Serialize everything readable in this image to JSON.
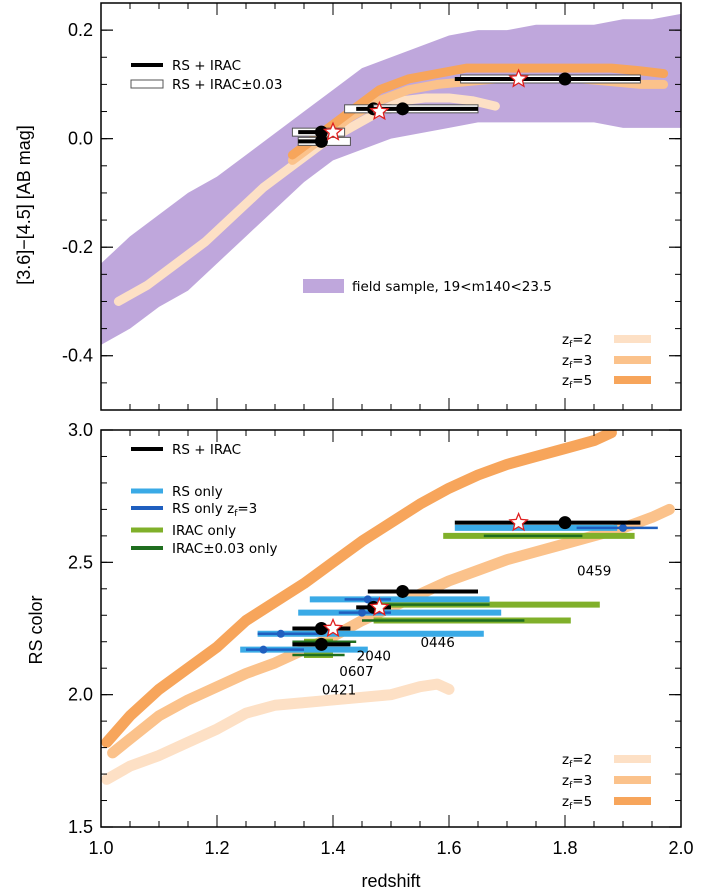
{
  "chart_data": [
    {
      "type": "line",
      "ylabel": "[3.6]−[4.5] [AB mag]",
      "xlim": [
        1.0,
        2.0
      ],
      "ylim": [
        -0.5,
        0.25
      ],
      "yticks": [
        -0.4,
        -0.2,
        0.0,
        0.2
      ],
      "ytick_labels": [
        "-0.4",
        "-0.2",
        "0.0",
        "0.2"
      ],
      "band": {
        "name": "field sample, 19<m140<23.5",
        "color": "#bfa7dc",
        "x": [
          1.0,
          1.05,
          1.1,
          1.15,
          1.2,
          1.25,
          1.3,
          1.35,
          1.4,
          1.45,
          1.5,
          1.55,
          1.6,
          1.65,
          1.7,
          1.75,
          1.8,
          1.85,
          1.9,
          1.95,
          2.0
        ],
        "upper": [
          -0.23,
          -0.18,
          -0.14,
          -0.1,
          -0.07,
          -0.03,
          0.01,
          0.05,
          0.09,
          0.13,
          0.15,
          0.17,
          0.19,
          0.2,
          0.2,
          0.21,
          0.21,
          0.21,
          0.22,
          0.22,
          0.23
        ],
        "lower": [
          -0.38,
          -0.35,
          -0.31,
          -0.28,
          -0.23,
          -0.18,
          -0.13,
          -0.08,
          -0.04,
          -0.02,
          0.0,
          0.01,
          0.02,
          0.03,
          0.03,
          0.03,
          0.03,
          0.03,
          0.02,
          0.02,
          0.02
        ]
      },
      "series": [
        {
          "name": "z_f=2",
          "color": "#fde0c5",
          "x": [
            1.03,
            1.08,
            1.13,
            1.18,
            1.23,
            1.28,
            1.33,
            1.38,
            1.43,
            1.48,
            1.52,
            1.56,
            1.6,
            1.64,
            1.68
          ],
          "values": [
            -0.3,
            -0.27,
            -0.23,
            -0.19,
            -0.14,
            -0.09,
            -0.05,
            -0.01,
            0.02,
            0.05,
            0.07,
            0.075,
            0.075,
            0.07,
            0.06
          ]
        },
        {
          "name": "z_f=3",
          "color": "#fbc28b",
          "x": [
            1.33,
            1.38,
            1.43,
            1.48,
            1.53,
            1.58,
            1.63,
            1.68,
            1.73,
            1.78,
            1.83,
            1.88,
            1.93,
            1.97
          ],
          "values": [
            -0.04,
            0.0,
            0.04,
            0.07,
            0.09,
            0.1,
            0.105,
            0.11,
            0.11,
            0.11,
            0.11,
            0.105,
            0.1,
            0.1
          ]
        },
        {
          "name": "z_f=5",
          "color": "#f7a55b",
          "x": [
            1.33,
            1.38,
            1.43,
            1.48,
            1.53,
            1.58,
            1.63,
            1.68,
            1.73,
            1.78,
            1.83,
            1.88,
            1.93,
            1.97
          ],
          "values": [
            -0.03,
            0.01,
            0.05,
            0.09,
            0.11,
            0.12,
            0.13,
            0.13,
            0.13,
            0.13,
            0.13,
            0.13,
            0.125,
            0.12
          ]
        }
      ],
      "points": [
        {
          "x": 1.38,
          "y": -0.005,
          "xmin": 1.34,
          "xmax": 1.39,
          "box": [
            1.34,
            1.43
          ]
        },
        {
          "x": 1.38,
          "y": 0.012,
          "xmin": 1.34,
          "xmax": 1.39,
          "box": [
            1.33,
            1.42
          ]
        },
        {
          "x": 1.47,
          "y": 0.055,
          "xmin": 1.44,
          "xmax": 1.5,
          "box": [
            1.42,
            1.5
          ]
        },
        {
          "x": 1.52,
          "y": 0.055,
          "xmin": 1.46,
          "xmax": 1.65,
          "box": [
            1.47,
            1.65
          ]
        },
        {
          "x": 1.8,
          "y": 0.11,
          "xmin": 1.61,
          "xmax": 1.93,
          "box": [
            1.62,
            1.93
          ]
        }
      ],
      "stars": [
        {
          "x": 1.4,
          "y": 0.012
        },
        {
          "x": 1.48,
          "y": 0.05
        },
        {
          "x": 1.72,
          "y": 0.11
        }
      ],
      "legend": {
        "items": [
          {
            "label": "RS + IRAC",
            "style": "black-line"
          },
          {
            "label": "RS + IRAC±0.03",
            "style": "open-box"
          }
        ],
        "band_label": "field sample, 19<m140<23.5",
        "zf_labels": [
          "z",
          "z",
          "z"
        ],
        "zf_sub": [
          "f",
          "f",
          "f"
        ],
        "zf_val": [
          "=2",
          "=3",
          "=5"
        ]
      }
    },
    {
      "type": "line",
      "xlabel": "redshift",
      "ylabel": "RS color",
      "xlim": [
        1.0,
        2.0
      ],
      "ylim": [
        1.5,
        3.0
      ],
      "xticks": [
        1.0,
        1.2,
        1.4,
        1.6,
        1.8,
        2.0
      ],
      "xtick_labels": [
        "1.0",
        "1.2",
        "1.4",
        "1.6",
        "1.8",
        "2.0"
      ],
      "yticks": [
        1.5,
        2.0,
        2.5,
        3.0
      ],
      "ytick_labels": [
        "1.5",
        "2.0",
        "2.5",
        "3.0"
      ],
      "series": [
        {
          "name": "z_f=2",
          "color": "#fde0c5",
          "x": [
            1.01,
            1.05,
            1.1,
            1.15,
            1.2,
            1.25,
            1.3,
            1.35,
            1.4,
            1.45,
            1.5,
            1.55,
            1.58,
            1.6
          ],
          "values": [
            1.68,
            1.73,
            1.77,
            1.82,
            1.87,
            1.93,
            1.96,
            1.97,
            1.98,
            1.99,
            2.0,
            2.03,
            2.04,
            2.02
          ]
        },
        {
          "name": "z_f=3",
          "color": "#fbc28b",
          "x": [
            1.02,
            1.06,
            1.1,
            1.15,
            1.2,
            1.25,
            1.3,
            1.35,
            1.4,
            1.45,
            1.5,
            1.55,
            1.6,
            1.65,
            1.7,
            1.75,
            1.8,
            1.85,
            1.9,
            1.95,
            1.98
          ],
          "values": [
            1.78,
            1.85,
            1.92,
            1.98,
            2.03,
            2.08,
            2.12,
            2.17,
            2.22,
            2.28,
            2.33,
            2.38,
            2.43,
            2.47,
            2.51,
            2.54,
            2.57,
            2.6,
            2.63,
            2.67,
            2.7
          ]
        },
        {
          "name": "z_f=5",
          "color": "#f7a55b",
          "x": [
            1.01,
            1.05,
            1.1,
            1.15,
            1.2,
            1.25,
            1.3,
            1.35,
            1.4,
            1.45,
            1.5,
            1.55,
            1.6,
            1.65,
            1.7,
            1.75,
            1.8,
            1.85,
            1.88
          ],
          "values": [
            1.82,
            1.92,
            2.02,
            2.1,
            2.18,
            2.28,
            2.35,
            2.42,
            2.5,
            2.58,
            2.65,
            2.72,
            2.78,
            2.83,
            2.87,
            2.9,
            2.93,
            2.96,
            2.99
          ]
        }
      ],
      "rs_irac": [
        {
          "x": 1.38,
          "y": 2.19,
          "xmin": 1.33,
          "xmax": 1.43
        },
        {
          "x": 1.38,
          "y": 2.25,
          "xmin": 1.33,
          "xmax": 1.43
        },
        {
          "x": 1.47,
          "y": 2.33,
          "xmin": 1.44,
          "xmax": 1.5
        },
        {
          "x": 1.52,
          "y": 2.39,
          "xmin": 1.46,
          "xmax": 1.65
        },
        {
          "x": 1.8,
          "y": 2.65,
          "xmin": 1.61,
          "xmax": 1.93
        }
      ],
      "rs_only": [
        {
          "y": 2.17,
          "xmin": 1.24,
          "xmax": 1.46
        },
        {
          "y": 2.23,
          "xmin": 1.27,
          "xmax": 1.66
        },
        {
          "y": 2.31,
          "xmin": 1.34,
          "xmax": 1.69
        },
        {
          "y": 2.36,
          "xmin": 1.36,
          "xmax": 1.67
        },
        {
          "y": 2.63,
          "xmin": 1.61,
          "xmax": 1.89
        }
      ],
      "rs_only_zf3": [
        {
          "x": 1.28,
          "y": 2.17,
          "xmin": 1.25,
          "xmax": 1.35
        },
        {
          "x": 1.31,
          "y": 2.23,
          "xmin": 1.27,
          "xmax": 1.38
        },
        {
          "x": 1.45,
          "y": 2.31,
          "xmin": 1.41,
          "xmax": 1.5
        },
        {
          "x": 1.46,
          "y": 2.36,
          "xmin": 1.42,
          "xmax": 1.5
        },
        {
          "x": 1.9,
          "y": 2.63,
          "xmin": 1.82,
          "xmax": 1.96
        }
      ],
      "irac_only": [
        {
          "y": 2.15,
          "xmin": 1.35,
          "xmax": 1.4
        },
        {
          "y": 2.2,
          "xmin": 1.35,
          "xmax": 1.4
        },
        {
          "y": 2.28,
          "xmin": 1.47,
          "xmax": 1.81
        },
        {
          "y": 2.34,
          "xmin": 1.47,
          "xmax": 1.86
        },
        {
          "y": 2.6,
          "xmin": 1.59,
          "xmax": 1.92
        }
      ],
      "irac_003_only": [
        {
          "y": 2.15,
          "xmin": 1.33,
          "xmax": 1.42
        },
        {
          "y": 2.2,
          "xmin": 1.33,
          "xmax": 1.44
        },
        {
          "y": 2.28,
          "xmin": 1.45,
          "xmax": 1.73
        },
        {
          "y": 2.34,
          "xmin": 1.46,
          "xmax": 1.67
        },
        {
          "y": 2.6,
          "xmin": 1.66,
          "xmax": 1.83
        }
      ],
      "stars": [
        {
          "x": 1.4,
          "y": 2.25
        },
        {
          "x": 1.48,
          "y": 2.33
        },
        {
          "x": 1.72,
          "y": 2.65
        }
      ],
      "annotations": [
        {
          "text": "0459",
          "x": 1.88,
          "y": 2.45
        },
        {
          "text": "0446",
          "x": 1.61,
          "y": 2.18
        },
        {
          "text": "2040",
          "x": 1.5,
          "y": 2.13
        },
        {
          "text": "0607",
          "x": 1.47,
          "y": 2.07
        },
        {
          "text": "0421",
          "x": 1.44,
          "y": 2.0
        }
      ],
      "legend": {
        "items": [
          {
            "label": "RS + IRAC",
            "color": "#000000"
          },
          {
            "label": "RS only",
            "color": "#3aaae6"
          },
          {
            "label": "RS only z",
            "sub": "f",
            "suffix": "=3",
            "color": "#1f5fbf"
          },
          {
            "label": "IRAC only",
            "color": "#80b02a"
          },
          {
            "label": "IRAC±0.03 only",
            "color": "#1f6e1f"
          }
        ],
        "zf_labels": [
          "z",
          "z",
          "z"
        ],
        "zf_sub": [
          "f",
          "f",
          "f"
        ],
        "zf_val": [
          "=2",
          "=3",
          "=5"
        ]
      }
    }
  ]
}
